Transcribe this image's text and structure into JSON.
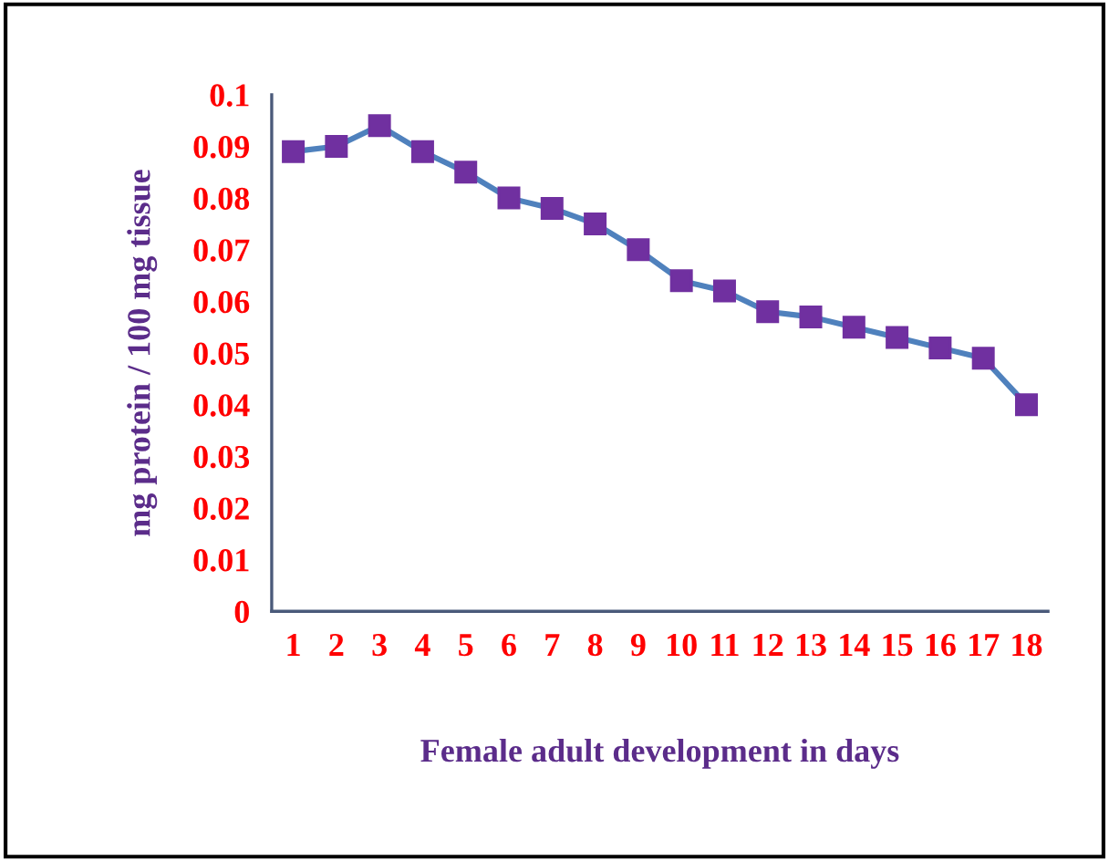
{
  "chart_data": {
    "type": "line",
    "xlabel": "Female adult development in days",
    "ylabel": "mg protein / 100 mg tissue",
    "categories": [
      "1",
      "2",
      "3",
      "4",
      "5",
      "6",
      "7",
      "8",
      "9",
      "10",
      "11",
      "12",
      "13",
      "14",
      "15",
      "16",
      "17",
      "18"
    ],
    "series": [
      {
        "color": "#4f81bd",
        "values": [
          0.089,
          0.09,
          0.094,
          0.089,
          0.085,
          0.08,
          0.078,
          0.075,
          0.07,
          0.064,
          0.062,
          0.058,
          0.057,
          0.055,
          0.053,
          0.051,
          0.049,
          0.04
        ]
      }
    ],
    "ylim": [
      0,
      0.1
    ],
    "yticks": [
      0,
      0.01,
      0.02,
      0.03,
      0.04,
      0.05,
      0.06,
      0.07,
      0.08,
      0.09,
      0.1
    ],
    "marker": "square",
    "line_style": "solid",
    "grid": false,
    "legend": false
  }
}
